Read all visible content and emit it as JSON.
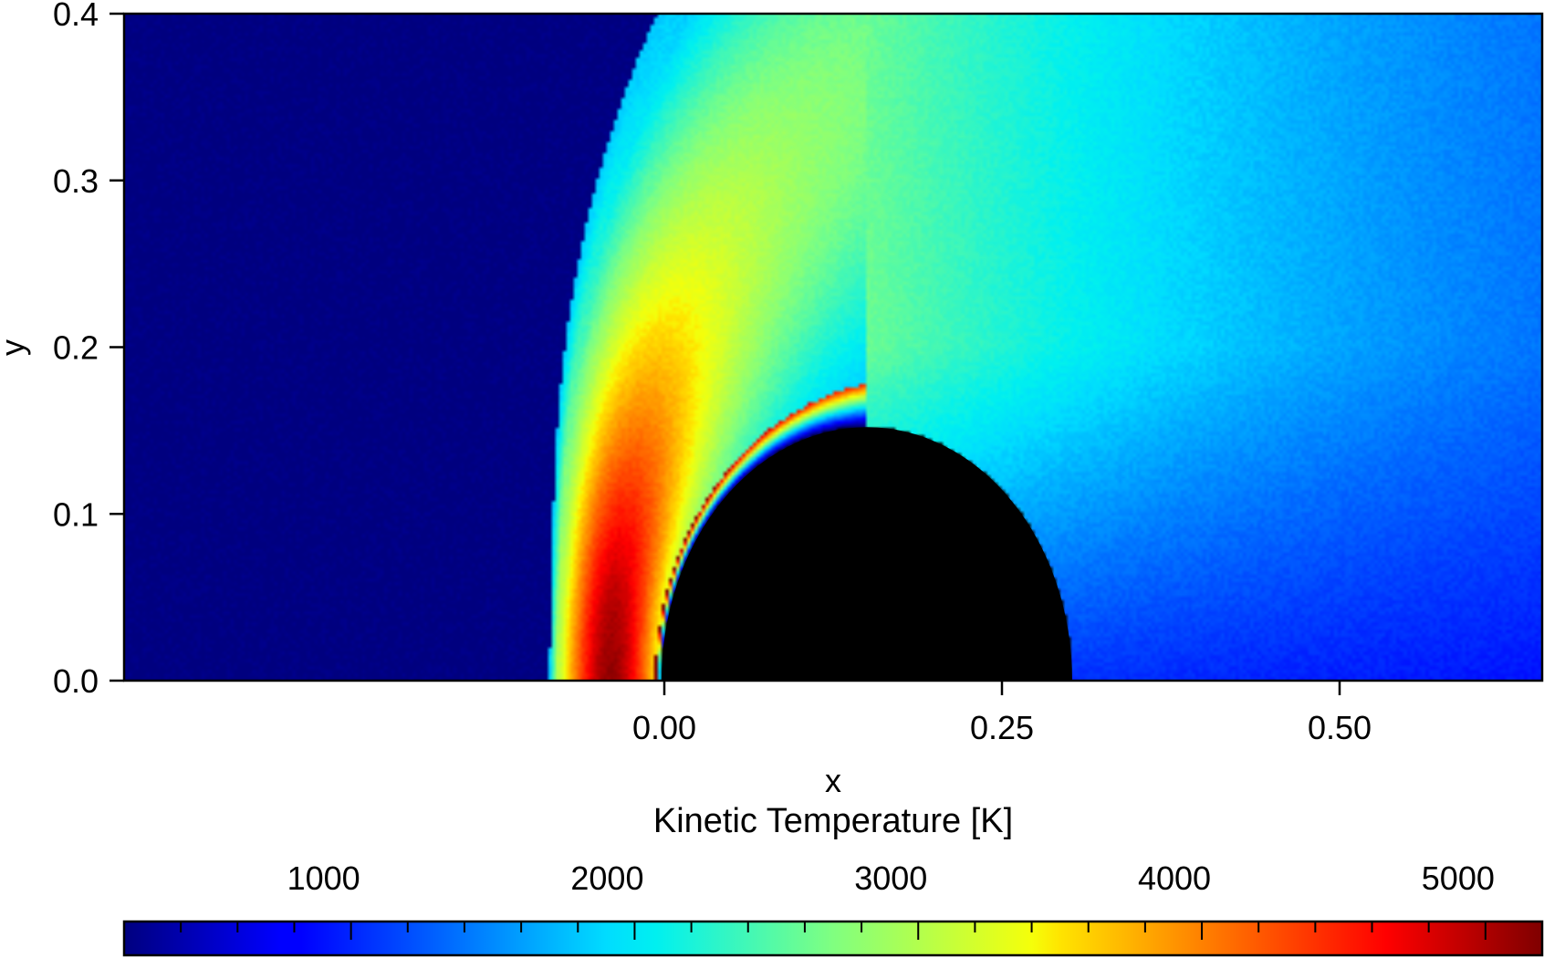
{
  "chart_data": {
    "type": "heatmap",
    "xlabel": "x",
    "ylabel": "y",
    "xlim": [
      -0.4,
      0.65
    ],
    "ylim": [
      0.0,
      0.4
    ],
    "x_ticks": [
      {
        "value": 0.0,
        "label": "0.00"
      },
      {
        "value": 0.25,
        "label": "0.25"
      },
      {
        "value": 0.5,
        "label": "0.50"
      }
    ],
    "y_ticks": [
      {
        "value": 0.0,
        "label": "0.0"
      },
      {
        "value": 0.1,
        "label": "0.1"
      },
      {
        "value": 0.2,
        "label": "0.2"
      },
      {
        "value": 0.3,
        "label": "0.3"
      },
      {
        "value": 0.4,
        "label": "0.4"
      }
    ],
    "colormap": "jet",
    "colorbar": {
      "title": "Kinetic Temperature [K]",
      "range": [
        200,
        5200
      ],
      "major_ticks": [
        {
          "value": 1000,
          "label": "1000"
        },
        {
          "value": 2000,
          "label": "2000"
        },
        {
          "value": 3000,
          "label": "3000"
        },
        {
          "value": 4000,
          "label": "4000"
        },
        {
          "value": 5000,
          "label": "5000"
        }
      ],
      "minor_step": 200,
      "position": "bottom"
    },
    "body": {
      "shape": "semicircle",
      "center_x": 0.15,
      "center_y": 0.0,
      "radius": 0.152,
      "color": "#000000"
    },
    "field": {
      "freestream_temperature": 200,
      "shock_standoff_x": -0.085,
      "peak_temperature": 5100,
      "wake_temperature": 800
    },
    "grid": false
  }
}
